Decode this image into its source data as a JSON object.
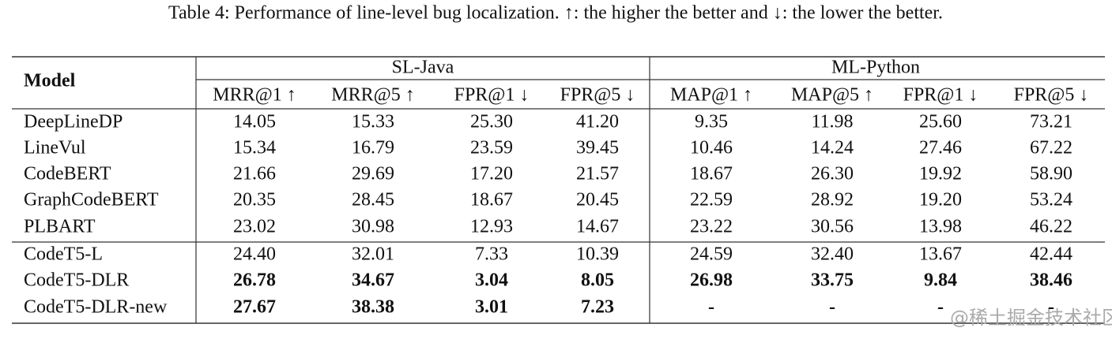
{
  "caption": "Table 4: Performance of line-level bug localization. ↑: the higher the better and ↓: the lower the better.",
  "table": {
    "model_header": "Model",
    "groups": [
      "SL-Java",
      "ML-Python"
    ],
    "columns": [
      "MRR@1 ↑",
      "MRR@5 ↑",
      "FPR@1 ↓",
      "FPR@5 ↓",
      "MAP@1 ↑",
      "MAP@5 ↑",
      "FPR@1 ↓",
      "FPR@5 ↓"
    ],
    "rows": [
      {
        "model": "DeepLineDP",
        "bold": false,
        "cells": [
          "14.05",
          "15.33",
          "25.30",
          "41.20",
          "9.35",
          "11.98",
          "25.60",
          "73.21"
        ]
      },
      {
        "model": "LineVul",
        "bold": false,
        "cells": [
          "15.34",
          "16.79",
          "23.59",
          "39.45",
          "10.46",
          "14.24",
          "27.46",
          "67.22"
        ]
      },
      {
        "model": "CodeBERT",
        "bold": false,
        "cells": [
          "21.66",
          "29.69",
          "17.20",
          "21.57",
          "18.67",
          "26.30",
          "19.92",
          "58.90"
        ]
      },
      {
        "model": "GraphCodeBERT",
        "bold": false,
        "cells": [
          "20.35",
          "28.45",
          "18.67",
          "20.45",
          "22.59",
          "28.92",
          "19.20",
          "53.24"
        ]
      },
      {
        "model": "PLBART",
        "bold": false,
        "cells": [
          "23.02",
          "30.98",
          "12.93",
          "14.67",
          "23.22",
          "30.56",
          "13.98",
          "46.22"
        ]
      },
      {
        "model": "CodeT5-L",
        "bold": false,
        "cells": [
          "24.40",
          "32.01",
          "7.33",
          "10.39",
          "24.59",
          "32.40",
          "13.67",
          "42.44"
        ]
      },
      {
        "model": "CodeT5-DLR",
        "bold": true,
        "cells": [
          "26.78",
          "34.67",
          "3.04",
          "8.05",
          "26.98",
          "33.75",
          "9.84",
          "38.46"
        ]
      },
      {
        "model": "CodeT5-DLR-new",
        "bold": true,
        "cells": [
          "27.67",
          "38.38",
          "3.01",
          "7.23",
          "-",
          "-",
          "-",
          "-"
        ]
      }
    ]
  },
  "watermark": "@稀土掘金技术社区"
}
